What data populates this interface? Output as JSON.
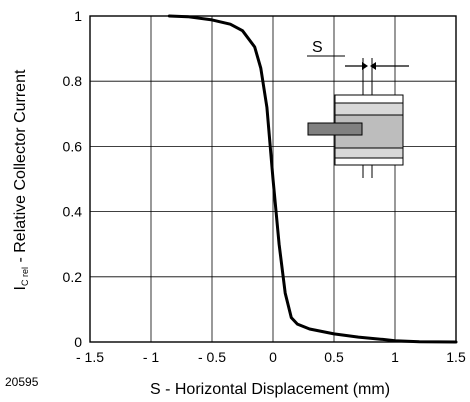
{
  "chart_data": {
    "type": "line",
    "figure_id": "20595",
    "xlabel": "S - Horizontal Displacement (mm)",
    "ylabel_main": "I",
    "ylabel_sub": "C rel",
    "ylabel_rest": " - Relative Collector Current",
    "xlim": [
      -1.5,
      1.5
    ],
    "ylim": [
      0,
      1
    ],
    "x_ticks": [
      -1.5,
      -1,
      -0.5,
      0,
      0.5,
      1,
      1.5
    ],
    "x_tick_labels": [
      "- 1.5",
      "- 1",
      "- 0.5",
      "0",
      "0.5",
      "1",
      "1.5"
    ],
    "y_ticks": [
      0,
      0.2,
      0.4,
      0.6,
      0.8,
      1
    ],
    "y_tick_labels": [
      "0",
      "0.2",
      "0.4",
      "0.6",
      "0.8",
      "1"
    ],
    "grid": true,
    "series": [
      {
        "x": [
          -0.85,
          -0.7,
          -0.5,
          -0.35,
          -0.25,
          -0.15,
          -0.1,
          -0.05,
          0,
          0.05,
          0.1,
          0.15,
          0.2,
          0.3,
          0.5,
          0.7,
          0.9,
          1.0,
          1.1,
          1.2,
          1.5
        ],
        "y": [
          1.0,
          0.998,
          0.988,
          0.975,
          0.955,
          0.905,
          0.84,
          0.72,
          0.5,
          0.3,
          0.15,
          0.075,
          0.055,
          0.04,
          0.025,
          0.015,
          0.008,
          0.004,
          0.002,
          0.001,
          0.0
        ],
        "color": "#000000"
      }
    ],
    "inset": {
      "label": "S"
    }
  }
}
